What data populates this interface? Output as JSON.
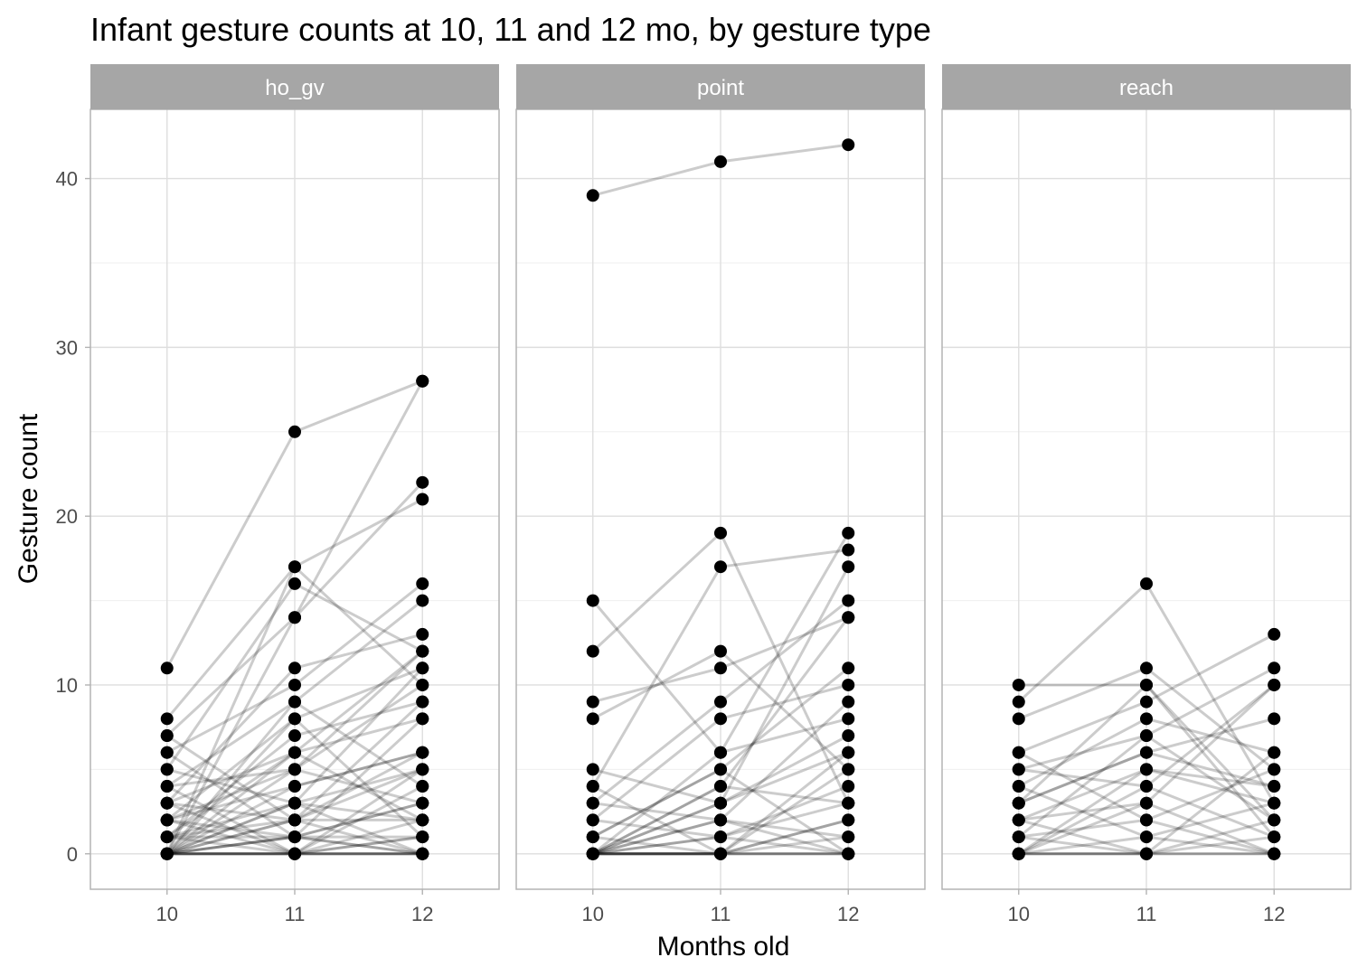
{
  "chart_data": {
    "type": "line",
    "title": "Infant gesture counts at 10, 11 and 12 mo, by gesture type",
    "xlabel": "Months old",
    "ylabel": "Gesture count",
    "x": [
      10,
      11,
      12
    ],
    "xlim": [
      9.4,
      12.6
    ],
    "ylim": [
      -2.1,
      44.1
    ],
    "y_ticks": [
      0,
      10,
      20,
      30,
      40
    ],
    "y_minor_ticks": [
      5,
      15,
      25,
      35
    ],
    "grid": true,
    "legend": "none",
    "colors": {
      "points": "#000000",
      "lines": "#000000",
      "strip_fill": "#a6a6a6",
      "strip_text": "#ffffff",
      "panel_border": "#b3b3b3",
      "grid_major": "#dedede",
      "grid_minor": "#efefef",
      "tick_text": "#4d4d4d"
    },
    "line_opacity": 0.2,
    "facets": [
      {
        "label": "ho_gv",
        "trajectories": [
          [
            11,
            25,
            28
          ],
          [
            8,
            17,
            21
          ],
          [
            7,
            14,
            22
          ],
          [
            6,
            10,
            16
          ],
          [
            5,
            16,
            12
          ],
          [
            4,
            9,
            15
          ],
          [
            3,
            11,
            13
          ],
          [
            0,
            17,
            10
          ],
          [
            0,
            14,
            28
          ],
          [
            2,
            8,
            11
          ],
          [
            1,
            7,
            9
          ],
          [
            3,
            6,
            8
          ],
          [
            0,
            5,
            12
          ],
          [
            2,
            4,
            6
          ],
          [
            1,
            3,
            5
          ],
          [
            0,
            9,
            4
          ],
          [
            4,
            5,
            3
          ],
          [
            3,
            2,
            9
          ],
          [
            2,
            1,
            8
          ],
          [
            0,
            3,
            11
          ],
          [
            1,
            6,
            2
          ],
          [
            0,
            4,
            6
          ],
          [
            0,
            2,
            5
          ],
          [
            1,
            0,
            4
          ],
          [
            5,
            3,
            2
          ],
          [
            6,
            1,
            3
          ],
          [
            0,
            8,
            1
          ],
          [
            2,
            0,
            0
          ],
          [
            0,
            1,
            3
          ],
          [
            1,
            2,
            0
          ],
          [
            0,
            0,
            2
          ],
          [
            0,
            1,
            1
          ],
          [
            0,
            0,
            1
          ],
          [
            0,
            0,
            0
          ],
          [
            0,
            0,
            0
          ],
          [
            0,
            0,
            0
          ],
          [
            0,
            1,
            0
          ],
          [
            3,
            0,
            1
          ],
          [
            0,
            2,
            2
          ],
          [
            1,
            1,
            0
          ],
          [
            0,
            6,
            12
          ],
          [
            2,
            5,
            10
          ],
          [
            0,
            3,
            0
          ],
          [
            4,
            0,
            5
          ],
          [
            7,
            2,
            6
          ]
        ]
      },
      {
        "label": "point",
        "trajectories": [
          [
            39,
            41,
            42
          ],
          [
            15,
            6,
            19
          ],
          [
            12,
            19,
            3
          ],
          [
            9,
            11,
            14
          ],
          [
            8,
            12,
            5
          ],
          [
            5,
            3,
            17
          ],
          [
            4,
            17,
            18
          ],
          [
            3,
            9,
            15
          ],
          [
            2,
            8,
            10
          ],
          [
            1,
            5,
            11
          ],
          [
            0,
            4,
            14
          ],
          [
            0,
            6,
            8
          ],
          [
            0,
            2,
            9
          ],
          [
            0,
            3,
            7
          ],
          [
            1,
            0,
            6
          ],
          [
            2,
            1,
            4
          ],
          [
            0,
            1,
            3
          ],
          [
            0,
            0,
            5
          ],
          [
            0,
            2,
            1
          ],
          [
            0,
            0,
            2
          ],
          [
            0,
            1,
            0
          ],
          [
            0,
            0,
            0
          ],
          [
            0,
            0,
            0
          ],
          [
            0,
            0,
            0
          ],
          [
            0,
            0,
            1
          ],
          [
            1,
            5,
            0
          ],
          [
            0,
            3,
            6
          ],
          [
            3,
            2,
            0
          ],
          [
            4,
            0,
            2
          ],
          [
            0,
            4,
            3
          ]
        ]
      },
      {
        "label": "reach",
        "trajectories": [
          [
            10,
            10,
            2
          ],
          [
            9,
            16,
            3
          ],
          [
            8,
            11,
            5
          ],
          [
            6,
            9,
            13
          ],
          [
            5,
            7,
            11
          ],
          [
            5,
            4,
            10
          ],
          [
            4,
            8,
            6
          ],
          [
            3,
            10,
            1
          ],
          [
            3,
            6,
            8
          ],
          [
            2,
            5,
            4
          ],
          [
            2,
            3,
            10
          ],
          [
            1,
            7,
            2
          ],
          [
            1,
            2,
            5
          ],
          [
            0,
            5,
            3
          ],
          [
            0,
            4,
            1
          ],
          [
            0,
            1,
            0
          ],
          [
            0,
            0,
            2
          ],
          [
            0,
            0,
            0
          ],
          [
            0,
            0,
            0
          ],
          [
            1,
            0,
            1
          ],
          [
            6,
            2,
            0
          ],
          [
            4,
            1,
            3
          ],
          [
            0,
            3,
            0
          ],
          [
            2,
            0,
            6
          ],
          [
            3,
            6,
            4
          ]
        ]
      }
    ]
  }
}
